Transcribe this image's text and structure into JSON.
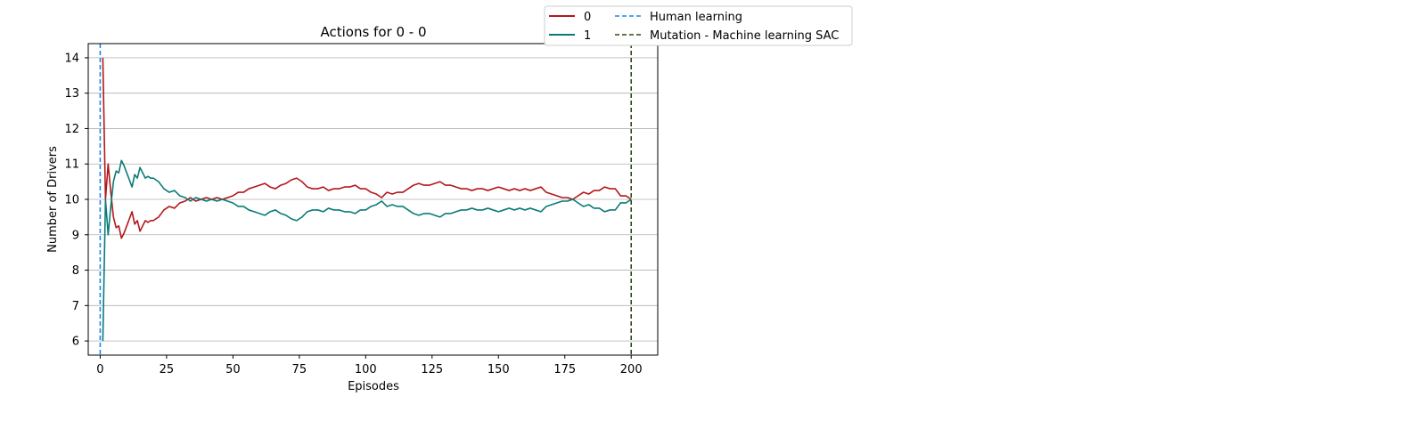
{
  "chart_data": {
    "type": "line",
    "title": "Actions for 0 - 0",
    "xlabel": "Episodes",
    "ylabel": "Number of Drivers",
    "xlim": [
      -4.5,
      210
    ],
    "ylim": [
      5.6,
      14.4
    ],
    "xticks": [
      0,
      25,
      50,
      75,
      100,
      125,
      150,
      175,
      200
    ],
    "yticks": [
      6,
      7,
      8,
      9,
      10,
      11,
      12,
      13,
      14
    ],
    "grid": "horizontal",
    "legend_position": "upper-right-outside",
    "series": [
      {
        "name": "0",
        "color": "#b2181b",
        "x": [
          1,
          2,
          3,
          4,
          5,
          6,
          7,
          8,
          9,
          10,
          11,
          12,
          13,
          14,
          15,
          16,
          17,
          18,
          19,
          20,
          22,
          24,
          26,
          28,
          30,
          32,
          34,
          36,
          38,
          40,
          42,
          44,
          46,
          48,
          50,
          52,
          54,
          56,
          58,
          60,
          62,
          64,
          66,
          68,
          70,
          72,
          74,
          76,
          78,
          80,
          82,
          84,
          86,
          88,
          90,
          92,
          94,
          96,
          98,
          100,
          102,
          104,
          106,
          108,
          110,
          112,
          114,
          116,
          118,
          120,
          122,
          124,
          126,
          128,
          130,
          132,
          134,
          136,
          138,
          140,
          142,
          144,
          146,
          148,
          150,
          152,
          154,
          156,
          158,
          160,
          162,
          164,
          166,
          168,
          170,
          172,
          174,
          176,
          178,
          180,
          182,
          184,
          186,
          188,
          190,
          192,
          194,
          196,
          198,
          200
        ],
        "values": [
          14.0,
          10.0,
          11.0,
          10.2,
          9.5,
          9.2,
          9.25,
          8.9,
          9.05,
          9.25,
          9.45,
          9.65,
          9.3,
          9.4,
          9.1,
          9.25,
          9.4,
          9.35,
          9.4,
          9.4,
          9.5,
          9.7,
          9.8,
          9.75,
          9.9,
          9.95,
          10.05,
          9.95,
          10.0,
          10.05,
          10.0,
          10.05,
          10.0,
          10.05,
          10.1,
          10.2,
          10.2,
          10.3,
          10.35,
          10.4,
          10.45,
          10.35,
          10.3,
          10.4,
          10.45,
          10.55,
          10.6,
          10.5,
          10.35,
          10.3,
          10.3,
          10.35,
          10.25,
          10.3,
          10.3,
          10.35,
          10.35,
          10.4,
          10.3,
          10.3,
          10.2,
          10.15,
          10.05,
          10.2,
          10.15,
          10.2,
          10.2,
          10.3,
          10.4,
          10.45,
          10.4,
          10.4,
          10.45,
          10.5,
          10.4,
          10.4,
          10.35,
          10.3,
          10.3,
          10.25,
          10.3,
          10.3,
          10.25,
          10.3,
          10.35,
          10.3,
          10.25,
          10.3,
          10.25,
          10.3,
          10.25,
          10.3,
          10.35,
          10.2,
          10.15,
          10.1,
          10.05,
          10.05,
          10.0,
          10.1,
          10.2,
          10.15,
          10.25,
          10.25,
          10.35,
          10.3,
          10.3,
          10.1,
          10.1,
          10.0
        ]
      },
      {
        "name": "1",
        "color": "#0a7b77",
        "x": [
          1,
          2,
          3,
          4,
          5,
          6,
          7,
          8,
          9,
          10,
          11,
          12,
          13,
          14,
          15,
          16,
          17,
          18,
          19,
          20,
          22,
          24,
          26,
          28,
          30,
          32,
          34,
          36,
          38,
          40,
          42,
          44,
          46,
          48,
          50,
          52,
          54,
          56,
          58,
          60,
          62,
          64,
          66,
          68,
          70,
          72,
          74,
          76,
          78,
          80,
          82,
          84,
          86,
          88,
          90,
          92,
          94,
          96,
          98,
          100,
          102,
          104,
          106,
          108,
          110,
          112,
          114,
          116,
          118,
          120,
          122,
          124,
          126,
          128,
          130,
          132,
          134,
          136,
          138,
          140,
          142,
          144,
          146,
          148,
          150,
          152,
          154,
          156,
          158,
          160,
          162,
          164,
          166,
          168,
          170,
          172,
          174,
          176,
          178,
          180,
          182,
          184,
          186,
          188,
          190,
          192,
          194,
          196,
          198,
          200
        ],
        "values": [
          6.0,
          10.0,
          9.0,
          9.8,
          10.5,
          10.8,
          10.75,
          11.1,
          10.95,
          10.75,
          10.55,
          10.35,
          10.7,
          10.6,
          10.9,
          10.75,
          10.6,
          10.65,
          10.6,
          10.6,
          10.5,
          10.3,
          10.2,
          10.25,
          10.1,
          10.05,
          9.95,
          10.05,
          10.0,
          9.95,
          10.0,
          9.95,
          10.0,
          9.95,
          9.9,
          9.8,
          9.8,
          9.7,
          9.65,
          9.6,
          9.55,
          9.65,
          9.7,
          9.6,
          9.55,
          9.45,
          9.4,
          9.5,
          9.65,
          9.7,
          9.7,
          9.65,
          9.75,
          9.7,
          9.7,
          9.65,
          9.65,
          9.6,
          9.7,
          9.7,
          9.8,
          9.85,
          9.95,
          9.8,
          9.85,
          9.8,
          9.8,
          9.7,
          9.6,
          9.55,
          9.6,
          9.6,
          9.55,
          9.5,
          9.6,
          9.6,
          9.65,
          9.7,
          9.7,
          9.75,
          9.7,
          9.7,
          9.75,
          9.7,
          9.65,
          9.7,
          9.75,
          9.7,
          9.75,
          9.7,
          9.75,
          9.7,
          9.65,
          9.8,
          9.85,
          9.9,
          9.95,
          9.95,
          10.0,
          9.9,
          9.8,
          9.85,
          9.75,
          9.75,
          9.65,
          9.7,
          9.7,
          9.9,
          9.9,
          10.0
        ]
      }
    ],
    "vlines": [
      {
        "name": "Human learning",
        "x": 0,
        "color": "#1f88e8",
        "style": "dashed"
      },
      {
        "name": "Mutation - Machine learning SAC",
        "x": 200,
        "color": "#2f4a10",
        "style": "dashed"
      }
    ]
  }
}
